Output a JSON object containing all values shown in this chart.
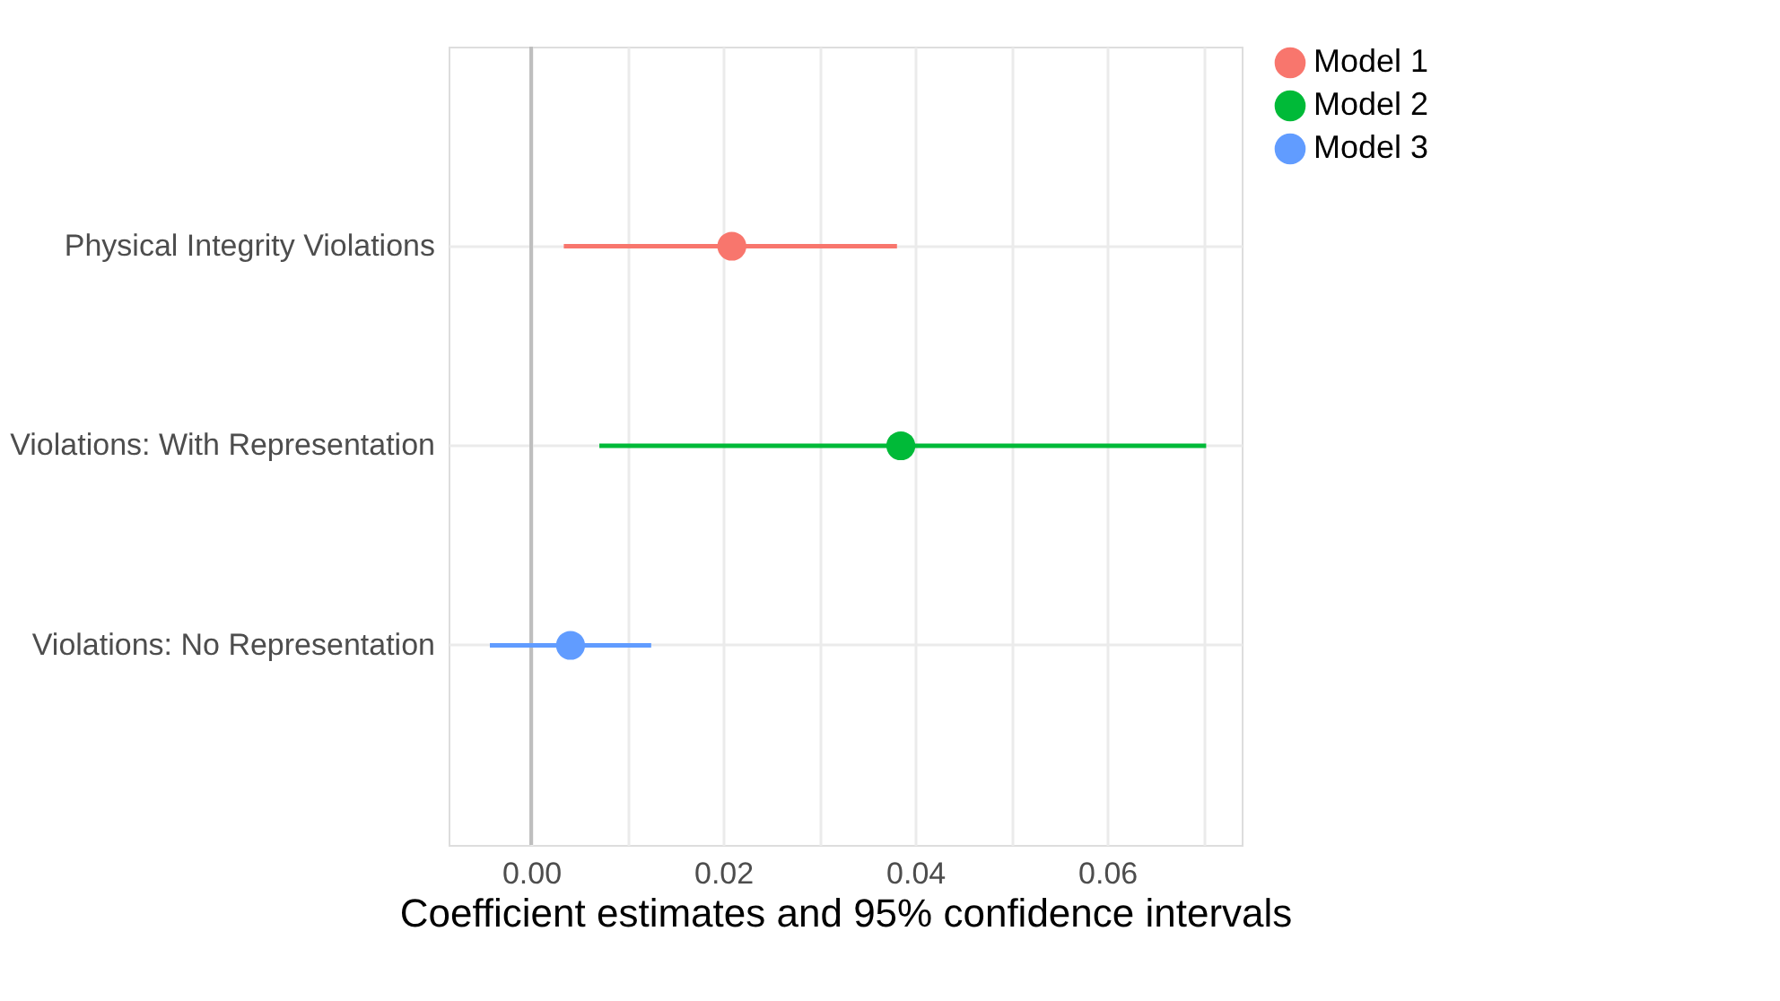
{
  "chart_data": {
    "type": "scatter",
    "orientation": "horizontal",
    "xlabel": "Coefficient estimates and 95% confidence intervals",
    "categories": [
      "Physical Integrity Violations",
      "Violations: With Representation",
      "Violations: No Representation"
    ],
    "series": [
      {
        "name": "Model 1",
        "color": "#f8766d",
        "values": [
          0.0209,
          null,
          null
        ],
        "errors": [
          [
            0.0034,
            0.0381
          ],
          null,
          null
        ]
      },
      {
        "name": "Model 2",
        "color": "#00ba38",
        "values": [
          null,
          0.0385,
          null
        ],
        "errors": [
          null,
          [
            0.0071,
            0.0703
          ],
          null
        ]
      },
      {
        "name": "Model 3",
        "color": "#619cff",
        "values": [
          null,
          null,
          0.0041
        ],
        "errors": [
          null,
          null,
          [
            -0.0043,
            0.0125
          ]
        ]
      }
    ],
    "xlim": [
      -0.0086,
      0.074
    ],
    "xticks": [
      {
        "value": 0,
        "label": "0.00"
      },
      {
        "value": 0.01,
        "label": null
      },
      {
        "value": 0.02,
        "label": "0.02"
      },
      {
        "value": 0.03,
        "label": null
      },
      {
        "value": 0.04,
        "label": "0.04"
      },
      {
        "value": 0.05,
        "label": null
      },
      {
        "value": 0.06,
        "label": "0.06"
      },
      {
        "value": 0.07,
        "label": null
      }
    ],
    "ref_lines": [
      {
        "axis": "x",
        "value": 0,
        "color": "#bebebe"
      }
    ],
    "grid": true,
    "legend": "right",
    "marker": "circle"
  }
}
